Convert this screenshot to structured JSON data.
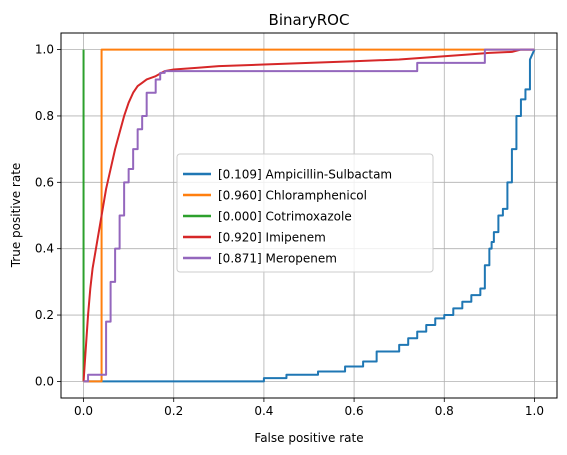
{
  "chart_data": {
    "type": "line",
    "title": "BinaryROC",
    "xlabel": "False positive rate",
    "ylabel": "True positive rate",
    "xlim": [
      -0.05,
      1.05
    ],
    "ylim": [
      -0.05,
      1.05
    ],
    "grid": true,
    "legend_position": "center-right",
    "xticks": [
      0.0,
      0.2,
      0.4,
      0.6,
      0.8,
      1.0
    ],
    "yticks": [
      0.0,
      0.2,
      0.4,
      0.6,
      0.8,
      1.0
    ],
    "xtick_labels": [
      "0.0",
      "0.2",
      "0.4",
      "0.6",
      "0.8",
      "1.0"
    ],
    "ytick_labels": [
      "0.0",
      "0.2",
      "0.4",
      "0.6",
      "0.8",
      "1.0"
    ],
    "series": [
      {
        "name": "[0.109] Ampicillin-Sulbactam",
        "color": "#1f77b4",
        "x": [
          0.0,
          0.4,
          0.4,
          0.45,
          0.45,
          0.52,
          0.52,
          0.58,
          0.58,
          0.62,
          0.62,
          0.65,
          0.65,
          0.7,
          0.7,
          0.72,
          0.72,
          0.74,
          0.74,
          0.76,
          0.76,
          0.78,
          0.78,
          0.8,
          0.8,
          0.82,
          0.82,
          0.84,
          0.84,
          0.86,
          0.86,
          0.88,
          0.88,
          0.89,
          0.89,
          0.9,
          0.9,
          0.905,
          0.905,
          0.91,
          0.91,
          0.92,
          0.92,
          0.93,
          0.93,
          0.94,
          0.94,
          0.95,
          0.95,
          0.96,
          0.96,
          0.97,
          0.97,
          0.98,
          0.98,
          0.99,
          0.99,
          1.0
        ],
        "y": [
          0.0,
          0.0,
          0.01,
          0.01,
          0.02,
          0.02,
          0.03,
          0.03,
          0.045,
          0.045,
          0.06,
          0.06,
          0.09,
          0.09,
          0.11,
          0.11,
          0.13,
          0.13,
          0.15,
          0.15,
          0.17,
          0.17,
          0.19,
          0.19,
          0.2,
          0.2,
          0.22,
          0.22,
          0.24,
          0.24,
          0.26,
          0.26,
          0.28,
          0.28,
          0.35,
          0.35,
          0.4,
          0.4,
          0.42,
          0.42,
          0.45,
          0.45,
          0.5,
          0.5,
          0.52,
          0.52,
          0.6,
          0.6,
          0.7,
          0.7,
          0.8,
          0.8,
          0.85,
          0.85,
          0.88,
          0.88,
          0.97,
          1.0
        ]
      },
      {
        "name": "[0.960] Chloramphenicol",
        "color": "#ff7f0e",
        "x": [
          0.0,
          0.04,
          0.04,
          1.0
        ],
        "y": [
          0.0,
          0.0,
          1.0,
          1.0
        ]
      },
      {
        "name": "[0.000] Cotrimoxazole",
        "color": "#2ca02c",
        "x": [
          0.0,
          0.0
        ],
        "y": [
          0.0,
          1.0
        ]
      },
      {
        "name": "[0.920] Imipenem",
        "color": "#d62728",
        "x": [
          0.0,
          0.005,
          0.01,
          0.015,
          0.02,
          0.025,
          0.03,
          0.035,
          0.04,
          0.045,
          0.05,
          0.06,
          0.07,
          0.08,
          0.09,
          0.1,
          0.11,
          0.12,
          0.13,
          0.14,
          0.16,
          0.18,
          0.2,
          0.25,
          0.3,
          0.4,
          0.5,
          0.6,
          0.7,
          0.8,
          0.85,
          0.9,
          0.95,
          0.97,
          1.0
        ],
        "y": [
          0.0,
          0.1,
          0.2,
          0.28,
          0.34,
          0.38,
          0.42,
          0.46,
          0.5,
          0.54,
          0.58,
          0.64,
          0.7,
          0.75,
          0.8,
          0.84,
          0.87,
          0.89,
          0.9,
          0.91,
          0.92,
          0.935,
          0.94,
          0.945,
          0.95,
          0.955,
          0.96,
          0.965,
          0.97,
          0.98,
          0.985,
          0.99,
          0.993,
          1.0,
          1.0
        ]
      },
      {
        "name": "[0.871] Meropenem",
        "color": "#9467bd",
        "x": [
          0.0,
          0.01,
          0.01,
          0.05,
          0.05,
          0.06,
          0.06,
          0.07,
          0.07,
          0.08,
          0.08,
          0.09,
          0.09,
          0.1,
          0.1,
          0.11,
          0.11,
          0.12,
          0.12,
          0.13,
          0.13,
          0.14,
          0.14,
          0.16,
          0.16,
          0.17,
          0.17,
          0.18,
          0.18,
          0.74,
          0.74,
          0.89,
          0.89,
          1.0
        ],
        "y": [
          0.0,
          0.0,
          0.02,
          0.02,
          0.18,
          0.18,
          0.3,
          0.3,
          0.4,
          0.4,
          0.5,
          0.5,
          0.6,
          0.6,
          0.64,
          0.64,
          0.7,
          0.7,
          0.76,
          0.76,
          0.8,
          0.8,
          0.87,
          0.87,
          0.91,
          0.91,
          0.93,
          0.93,
          0.935,
          0.935,
          0.96,
          0.96,
          1.0,
          1.0
        ]
      }
    ]
  }
}
